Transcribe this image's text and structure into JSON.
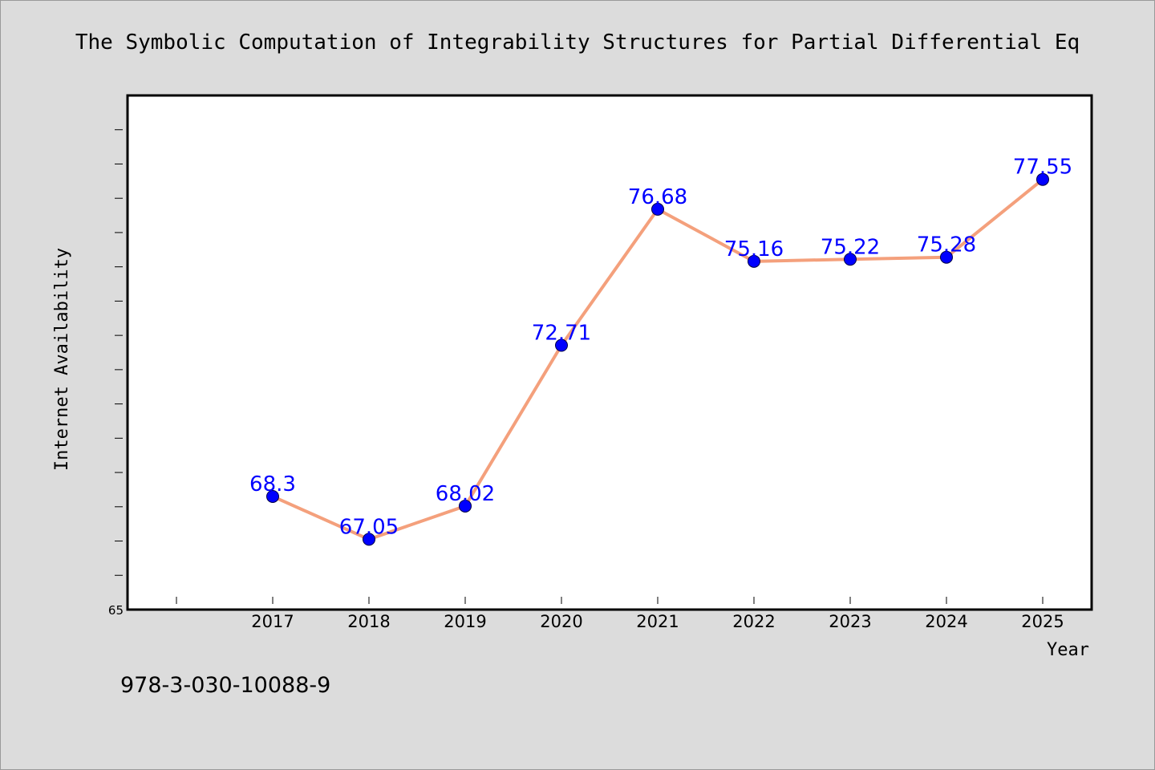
{
  "chart_data": {
    "type": "line",
    "title": "The Symbolic Computation of Integrability Structures for Partial Differential Eq",
    "xlabel": "Year",
    "ylabel": "Internet Availability",
    "categories": [
      "2017",
      "2018",
      "2019",
      "2020",
      "2021",
      "2022",
      "2023",
      "2024",
      "2025"
    ],
    "series": [
      {
        "values": [
          68.3,
          67.05,
          68.02,
          72.71,
          76.68,
          75.16,
          75.22,
          75.28,
          77.55
        ],
        "data_labels": [
          "68.3",
          "67.05",
          "68.02",
          "72.71",
          "76.68",
          "75.16",
          "75.22",
          "75.28",
          "77.55"
        ]
      }
    ],
    "ylim": [
      65,
      80
    ],
    "y_tick_labels": [
      "65"
    ],
    "grid": false,
    "legend": "none",
    "colors": {
      "line": "#f4a07c",
      "marker": "#0000ff",
      "data_label": "#0000ff",
      "plot_background": "#ffffff",
      "page_background": "#dcdcdc"
    }
  },
  "footer": {
    "isbn": "978-3-030-10088-9"
  }
}
